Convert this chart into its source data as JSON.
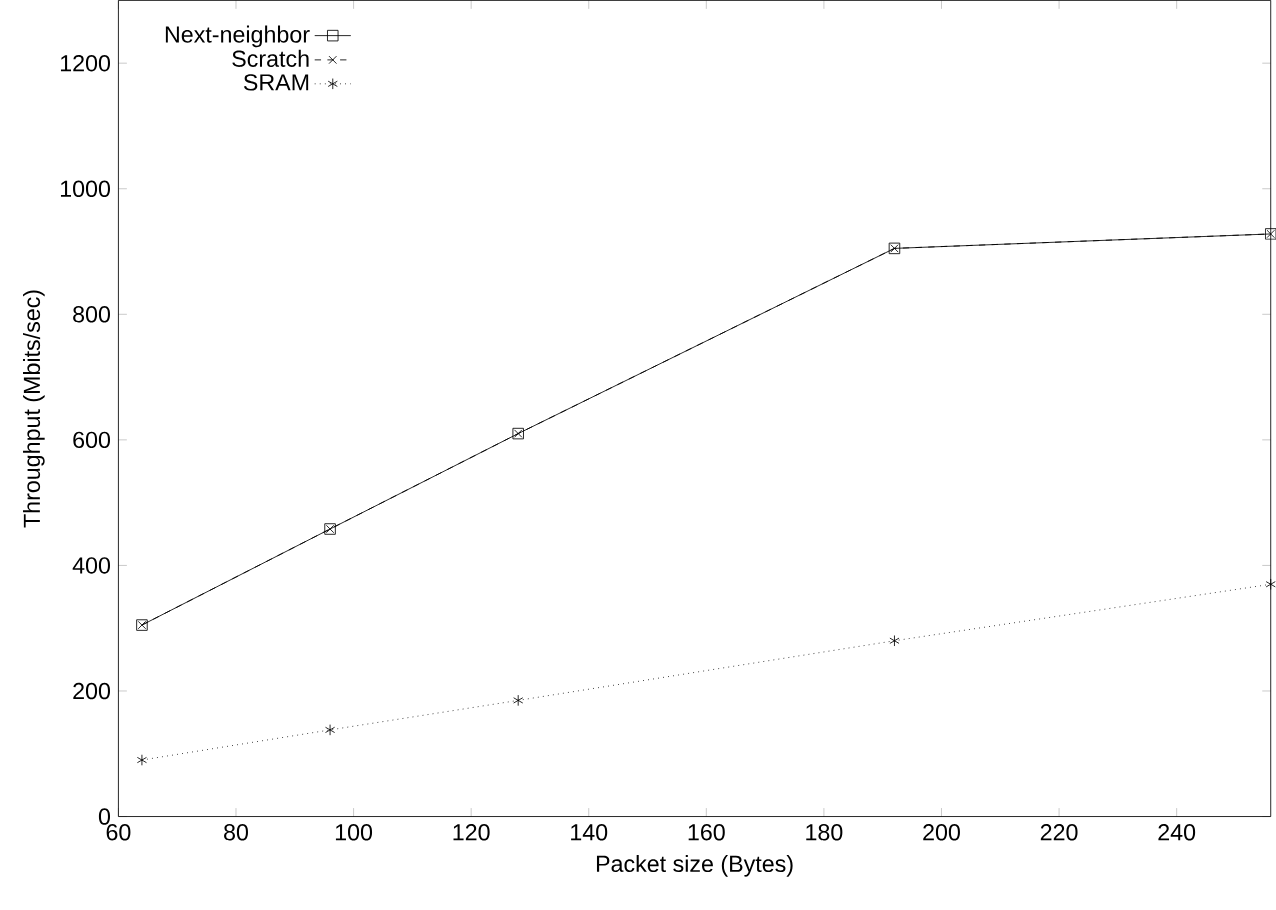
{
  "chart_data": {
    "type": "line",
    "xlabel": "Packet size (Bytes)",
    "ylabel": "Throughput (Mbits/sec)",
    "x": [
      64,
      96,
      128,
      192,
      256
    ],
    "series": [
      {
        "name": "Next-neighbor",
        "color": "#000000",
        "values": [
          305,
          458,
          610,
          905,
          928
        ],
        "marker": "square",
        "line_style": "solid"
      },
      {
        "name": "Scratch",
        "color": "#000000",
        "values": [
          305,
          458,
          610,
          905,
          928
        ],
        "marker": "cross",
        "line_style": "dashed"
      },
      {
        "name": "SRAM",
        "color": "#000000",
        "values": [
          90,
          138,
          185,
          280,
          370
        ],
        "marker": "cross",
        "line_style": "dotted"
      }
    ],
    "xlim": [
      60,
      256
    ],
    "ylim": [
      0,
      1300
    ],
    "xticks": [
      60,
      80,
      100,
      120,
      140,
      160,
      180,
      200,
      220,
      240
    ],
    "yticks": [
      0,
      200,
      400,
      600,
      800,
      1000,
      1200
    ],
    "legend": "top left",
    "grid": false
  }
}
